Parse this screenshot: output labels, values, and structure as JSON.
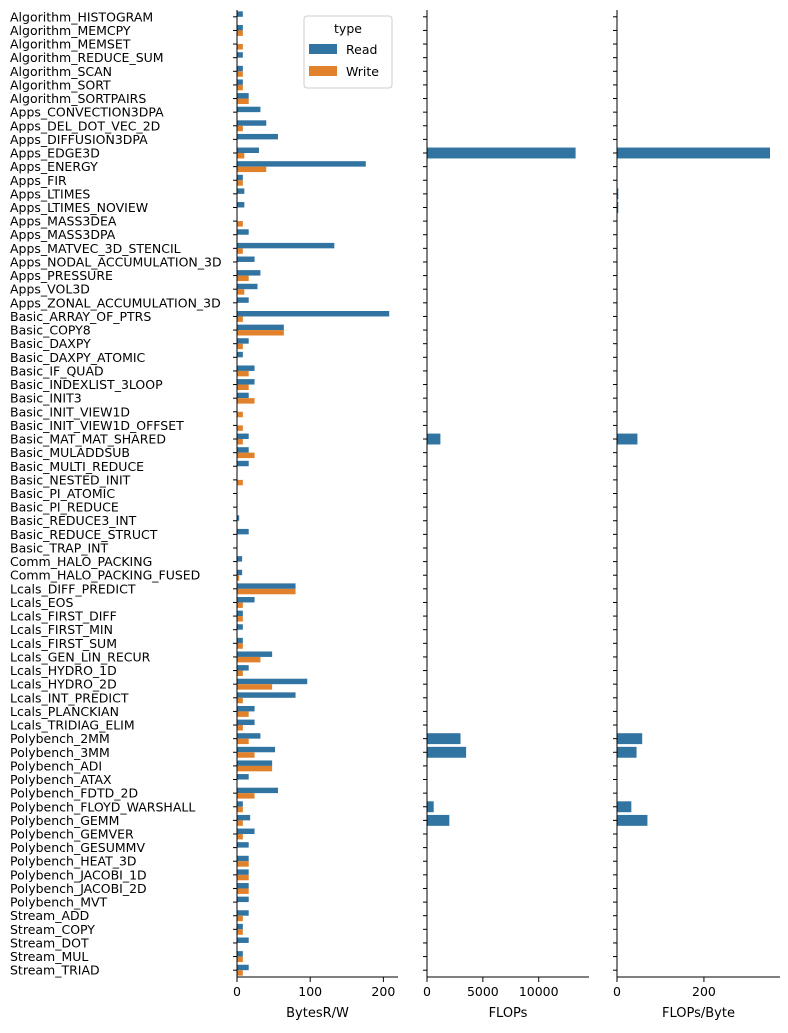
{
  "chart_data": {
    "type": "bar",
    "orientation": "horizontal",
    "categories": [
      "Algorithm_HISTOGRAM",
      "Algorithm_MEMCPY",
      "Algorithm_MEMSET",
      "Algorithm_REDUCE_SUM",
      "Algorithm_SCAN",
      "Algorithm_SORT",
      "Algorithm_SORTPAIRS",
      "Apps_CONVECTION3DPA",
      "Apps_DEL_DOT_VEC_2D",
      "Apps_DIFFUSION3DPA",
      "Apps_EDGE3D",
      "Apps_ENERGY",
      "Apps_FIR",
      "Apps_LTIMES",
      "Apps_LTIMES_NOVIEW",
      "Apps_MASS3DEA",
      "Apps_MASS3DPA",
      "Apps_MATVEC_3D_STENCIL",
      "Apps_NODAL_ACCUMULATION_3D",
      "Apps_PRESSURE",
      "Apps_VOL3D",
      "Apps_ZONAL_ACCUMULATION_3D",
      "Basic_ARRAY_OF_PTRS",
      "Basic_COPY8",
      "Basic_DAXPY",
      "Basic_DAXPY_ATOMIC",
      "Basic_IF_QUAD",
      "Basic_INDEXLIST_3LOOP",
      "Basic_INIT3",
      "Basic_INIT_VIEW1D",
      "Basic_INIT_VIEW1D_OFFSET",
      "Basic_MAT_MAT_SHARED",
      "Basic_MULADDSUB",
      "Basic_MULTI_REDUCE",
      "Basic_NESTED_INIT",
      "Basic_PI_ATOMIC",
      "Basic_PI_REDUCE",
      "Basic_REDUCE3_INT",
      "Basic_REDUCE_STRUCT",
      "Basic_TRAP_INT",
      "Comm_HALO_PACKING",
      "Comm_HALO_PACKING_FUSED",
      "Lcals_DIFF_PREDICT",
      "Lcals_EOS",
      "Lcals_FIRST_DIFF",
      "Lcals_FIRST_MIN",
      "Lcals_FIRST_SUM",
      "Lcals_GEN_LIN_RECUR",
      "Lcals_HYDRO_1D",
      "Lcals_HYDRO_2D",
      "Lcals_INT_PREDICT",
      "Lcals_PLANCKIAN",
      "Lcals_TRIDIAG_ELIM",
      "Polybench_2MM",
      "Polybench_3MM",
      "Polybench_ADI",
      "Polybench_ATAX",
      "Polybench_FDTD_2D",
      "Polybench_FLOYD_WARSHALL",
      "Polybench_GEMM",
      "Polybench_GEMVER",
      "Polybench_GESUMMV",
      "Polybench_HEAT_3D",
      "Polybench_JACOBI_1D",
      "Polybench_JACOBI_2D",
      "Polybench_MVT",
      "Stream_ADD",
      "Stream_COPY",
      "Stream_DOT",
      "Stream_MUL",
      "Stream_TRIAD"
    ],
    "panels": [
      {
        "xlabel": "BytesR/W",
        "xlim": [
          0,
          220
        ],
        "xticks": [
          0,
          100,
          200
        ],
        "series": [
          {
            "name": "Read",
            "color": "#3274a1",
            "values": [
              8,
              8,
              0,
              8,
              8,
              8,
              16,
              32,
              40,
              56,
              30,
              176,
              8,
              10,
              10,
              0,
              16,
              133,
              24,
              32,
              28,
              16,
              208,
              64,
              16,
              8,
              24,
              24,
              16,
              0,
              0,
              16,
              16,
              16,
              0,
              0,
              0,
              3,
              16,
              0,
              7,
              7,
              80,
              24,
              8,
              8,
              8,
              48,
              16,
              96,
              80,
              24,
              24,
              32,
              52,
              48,
              16,
              56,
              8,
              18,
              24,
              16,
              16,
              16,
              16,
              16,
              16,
              8,
              16,
              8,
              16
            ]
          },
          {
            "name": "Write",
            "color": "#e1812c",
            "values": [
              0,
              8,
              8,
              0,
              8,
              8,
              16,
              0,
              8,
              0,
              10,
              40,
              8,
              0,
              0,
              8,
              0,
              8,
              0,
              16,
              10,
              0,
              8,
              64,
              8,
              0,
              16,
              16,
              24,
              8,
              8,
              8,
              24,
              0,
              8,
              0,
              0,
              0,
              0,
              0,
              0,
              3,
              80,
              8,
              8,
              0,
              8,
              32,
              8,
              48,
              8,
              16,
              8,
              16,
              24,
              48,
              0,
              24,
              8,
              8,
              8,
              0,
              16,
              16,
              16,
              0,
              8,
              8,
              0,
              8,
              8
            ]
          }
        ]
      },
      {
        "xlabel": "FLOPs",
        "xlim": [
          0,
          14500
        ],
        "xticks": [
          0,
          5000,
          10000
        ],
        "series": [
          {
            "name": "Read",
            "color": "#3274a1",
            "values": [
              0,
              0,
              0,
              0,
              0,
              0,
              0,
              0,
              0,
              0,
              13300,
              0,
              0,
              0,
              0,
              0,
              0,
              0,
              0,
              0,
              0,
              0,
              0,
              0,
              0,
              0,
              0,
              0,
              0,
              0,
              0,
              1200,
              0,
              0,
              0,
              0,
              0,
              0,
              0,
              0,
              0,
              0,
              0,
              0,
              0,
              0,
              0,
              0,
              0,
              0,
              0,
              0,
              0,
              3000,
              3500,
              0,
              0,
              0,
              600,
              2000,
              0,
              0,
              0,
              0,
              0,
              0,
              0,
              0,
              0,
              0,
              0
            ]
          }
        ]
      },
      {
        "xlabel": "FLOPs/Byte",
        "xlim": [
          0,
          375
        ],
        "xticks": [
          0,
          200
        ],
        "series": [
          {
            "name": "Read",
            "color": "#3274a1",
            "values": [
              0,
              0,
              0,
              0,
              0,
              0,
              0,
              0,
              0,
              0,
              352,
              0,
              0,
              3,
              3,
              0,
              0,
              0,
              0,
              0,
              0,
              0,
              0,
              0,
              0,
              0,
              0,
              0,
              0,
              0,
              0,
              47,
              0,
              0,
              0,
              0,
              0,
              0,
              0,
              0,
              0,
              0,
              0,
              0,
              0,
              0,
              0,
              0,
              0,
              0,
              0,
              0,
              0,
              58,
              45,
              0,
              0,
              0,
              33,
              70,
              0,
              0,
              0,
              0,
              0,
              0,
              0,
              0,
              0,
              0,
              0
            ]
          }
        ]
      }
    ],
    "legend": {
      "title": "type",
      "entries": [
        "Read",
        "Write"
      ],
      "placement": "top-right of first panel"
    },
    "grid": false
  }
}
